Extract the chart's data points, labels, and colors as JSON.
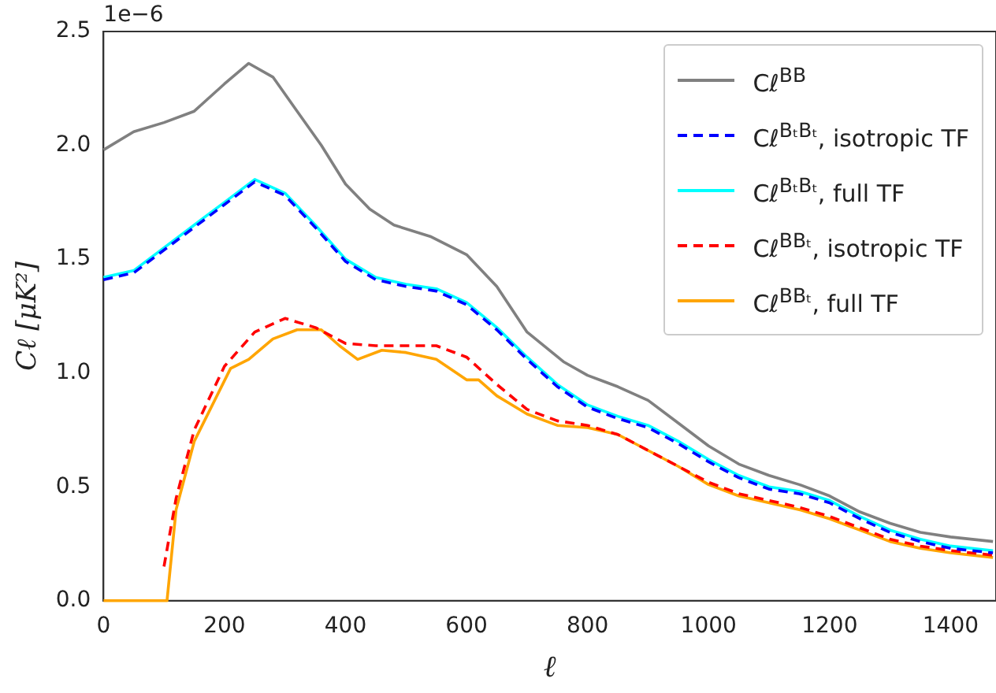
{
  "chart_data": {
    "type": "line",
    "xlabel": "ℓ",
    "ylabel": "Cℓ [μK²]",
    "annotations": [
      "1e−6"
    ],
    "xlim": [
      0,
      1475
    ],
    "xticks": [
      0,
      200,
      400,
      600,
      800,
      1000,
      1200,
      1400
    ],
    "ylim": [
      0,
      2.5
    ],
    "yticks": [
      {
        "value": 0,
        "label": "0.0"
      },
      {
        "value": 0.5,
        "label": "0.5"
      },
      {
        "value": 1,
        "label": "1.0"
      },
      {
        "value": 1.5,
        "label": "1.5"
      },
      {
        "value": 2,
        "label": "2.0"
      },
      {
        "value": 2.5,
        "label": "2.5"
      }
    ],
    "grid": false,
    "legend": "top right",
    "marker": "none",
    "series": [
      {
        "name": "Cℓ$^{BB}$",
        "color": "#808080",
        "line_style": "solid",
        "x": [
          0,
          50,
          100,
          150,
          200,
          240,
          280,
          320,
          360,
          400,
          440,
          480,
          540,
          600,
          650,
          700,
          760,
          800,
          850,
          900,
          950,
          1000,
          1050,
          1100,
          1150,
          1200,
          1250,
          1300,
          1350,
          1400,
          1470
        ],
        "values": [
          1.98,
          2.06,
          2.1,
          2.15,
          2.27,
          2.36,
          2.3,
          2.15,
          2.0,
          1.83,
          1.72,
          1.65,
          1.6,
          1.52,
          1.38,
          1.18,
          1.05,
          0.99,
          0.94,
          0.88,
          0.78,
          0.68,
          0.6,
          0.55,
          0.51,
          0.46,
          0.39,
          0.34,
          0.3,
          0.28,
          0.26
        ]
      },
      {
        "name": "Cℓ$^{BₜBₜ}$, isotropic TF",
        "color": "#0000ff",
        "line_style": "dashed",
        "x": [
          0,
          50,
          100,
          150,
          200,
          250,
          300,
          350,
          400,
          450,
          500,
          550,
          600,
          650,
          700,
          750,
          800,
          850,
          900,
          950,
          1000,
          1050,
          1100,
          1150,
          1200,
          1250,
          1300,
          1350,
          1400,
          1470
        ],
        "values": [
          1.41,
          1.44,
          1.54,
          1.64,
          1.74,
          1.84,
          1.78,
          1.64,
          1.49,
          1.41,
          1.38,
          1.36,
          1.3,
          1.19,
          1.06,
          0.94,
          0.85,
          0.8,
          0.76,
          0.69,
          0.61,
          0.54,
          0.49,
          0.47,
          0.43,
          0.36,
          0.3,
          0.26,
          0.23,
          0.21
        ]
      },
      {
        "name": "Cℓ$^{BₜBₜ}$, full TF",
        "color": "#00ffff",
        "line_style": "solid",
        "x": [
          0,
          50,
          100,
          150,
          200,
          250,
          300,
          350,
          400,
          450,
          500,
          550,
          600,
          650,
          700,
          750,
          800,
          850,
          900,
          950,
          1000,
          1050,
          1100,
          1150,
          1200,
          1250,
          1300,
          1350,
          1400,
          1470
        ],
        "values": [
          1.42,
          1.45,
          1.55,
          1.65,
          1.75,
          1.85,
          1.79,
          1.65,
          1.5,
          1.42,
          1.39,
          1.37,
          1.31,
          1.2,
          1.07,
          0.95,
          0.86,
          0.81,
          0.77,
          0.7,
          0.62,
          0.55,
          0.5,
          0.48,
          0.44,
          0.37,
          0.31,
          0.27,
          0.24,
          0.22
        ]
      },
      {
        "name": "Cℓ$^{BBₜ}$, isotropic TF",
        "color": "#ff0000",
        "line_style": "dashed",
        "x": [
          100,
          120,
          150,
          200,
          250,
          300,
          350,
          400,
          450,
          500,
          550,
          600,
          650,
          700,
          750,
          800,
          850,
          900,
          950,
          1000,
          1050,
          1100,
          1150,
          1200,
          1250,
          1300,
          1350,
          1400,
          1470
        ],
        "values": [
          0.15,
          0.45,
          0.75,
          1.03,
          1.18,
          1.24,
          1.2,
          1.13,
          1.12,
          1.12,
          1.12,
          1.07,
          0.95,
          0.84,
          0.79,
          0.77,
          0.73,
          0.66,
          0.59,
          0.52,
          0.47,
          0.44,
          0.41,
          0.37,
          0.32,
          0.27,
          0.24,
          0.22,
          0.2
        ]
      },
      {
        "name": "Cℓ$^{BBₜ}$, full TF",
        "color": "#ffa500",
        "line_style": "solid",
        "x": [
          0,
          105,
          120,
          150,
          210,
          240,
          280,
          320,
          360,
          390,
          420,
          460,
          500,
          550,
          600,
          620,
          650,
          700,
          750,
          800,
          850,
          900,
          950,
          1000,
          1050,
          1100,
          1150,
          1200,
          1250,
          1300,
          1350,
          1400,
          1470
        ],
        "values": [
          0,
          0,
          0.4,
          0.7,
          1.02,
          1.06,
          1.15,
          1.19,
          1.19,
          1.12,
          1.06,
          1.1,
          1.09,
          1.06,
          0.97,
          0.97,
          0.9,
          0.82,
          0.77,
          0.76,
          0.73,
          0.66,
          0.59,
          0.51,
          0.46,
          0.43,
          0.4,
          0.36,
          0.31,
          0.26,
          0.23,
          0.21,
          0.19
        ]
      }
    ]
  }
}
